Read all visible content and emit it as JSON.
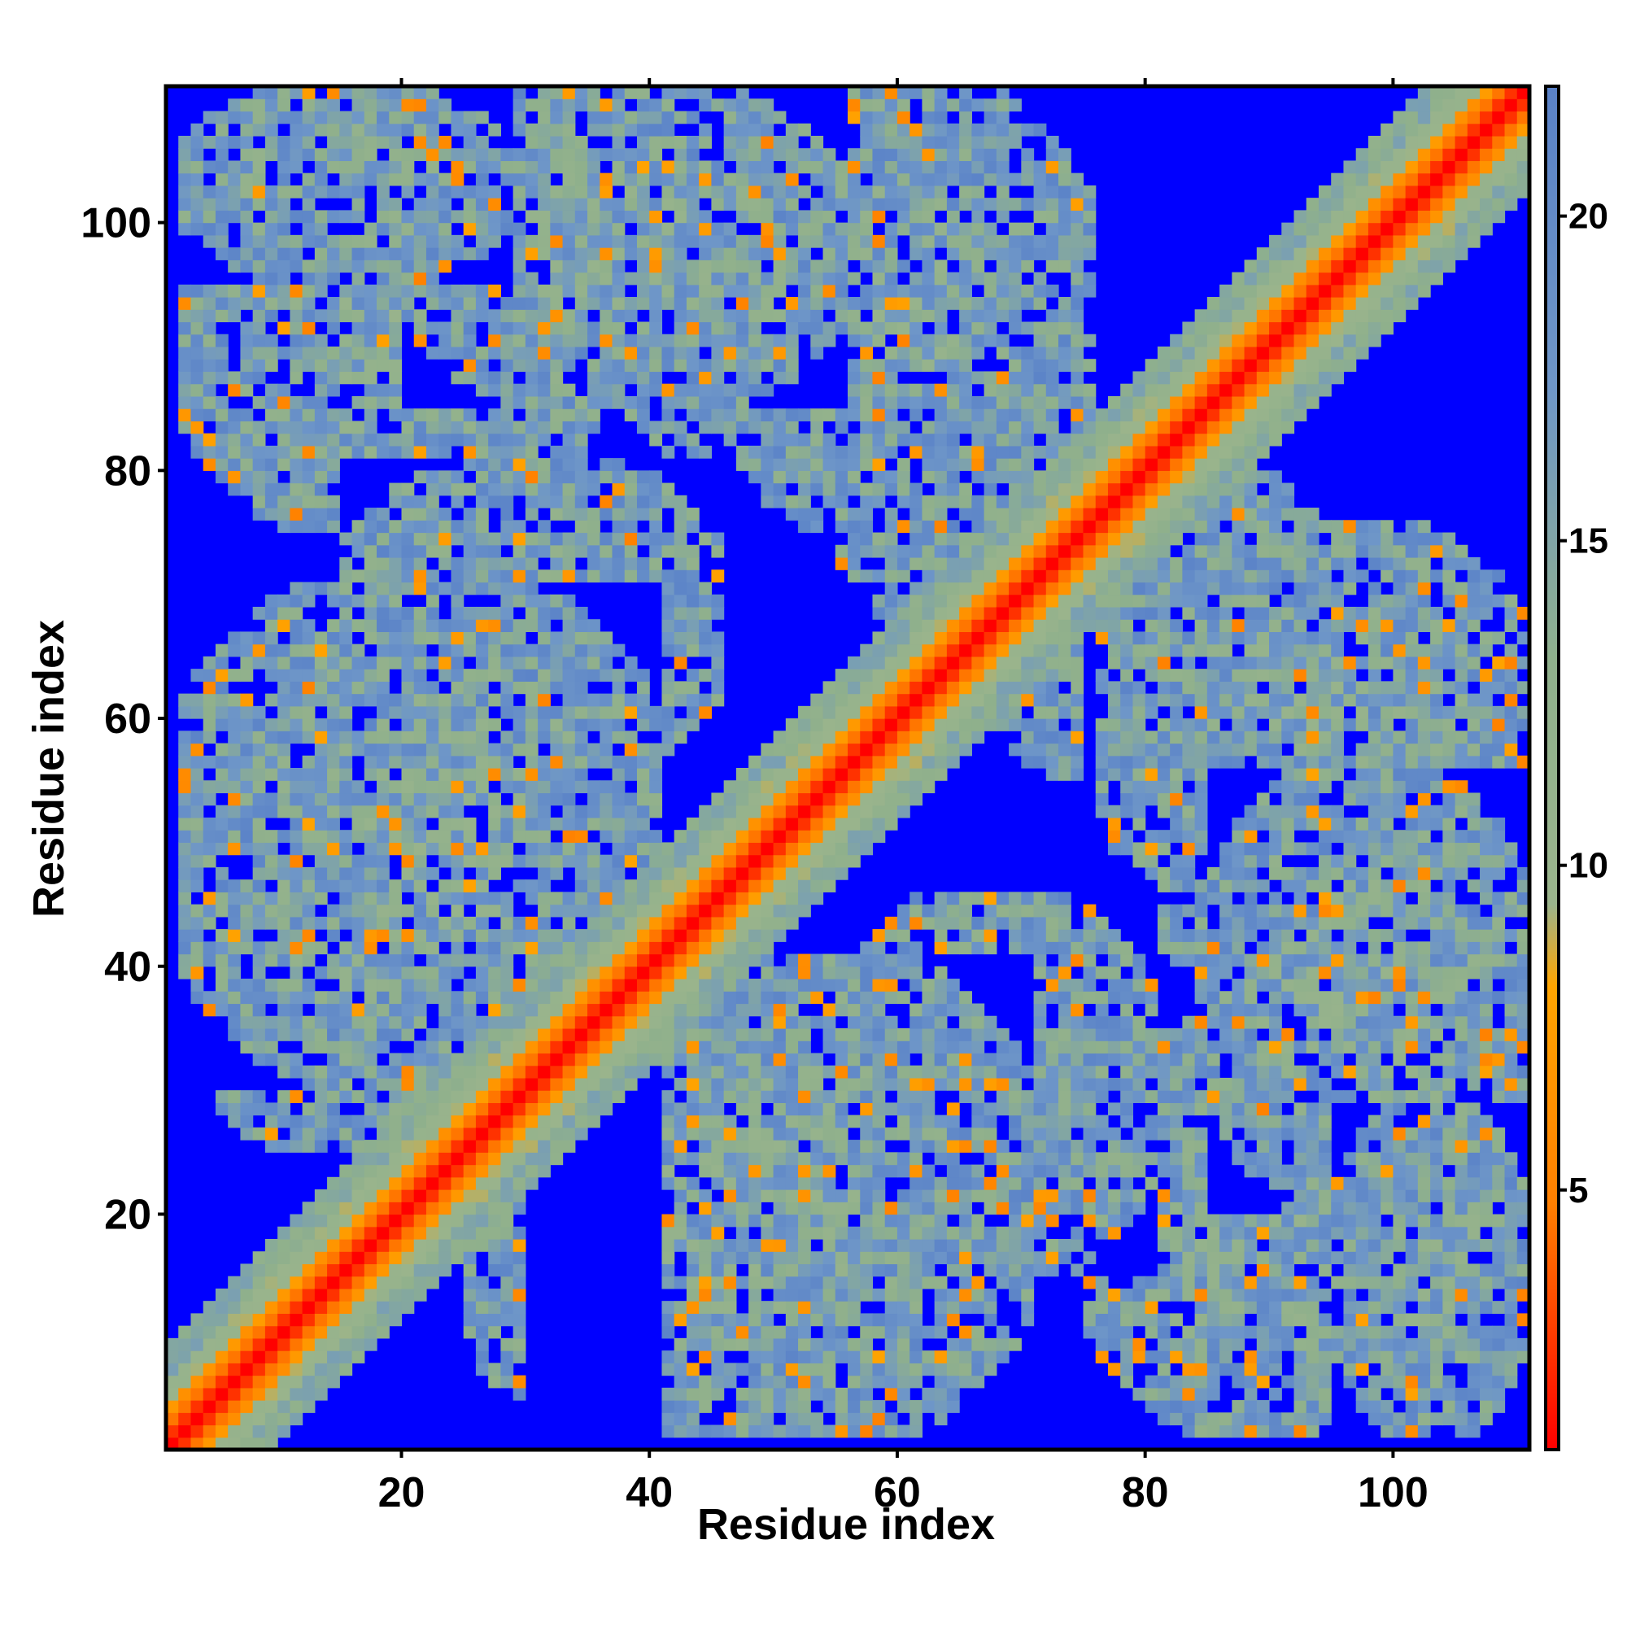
{
  "chart_data": {
    "type": "heatmap",
    "title": "",
    "xlabel": "Residue index",
    "ylabel": "Residue index",
    "xlim": [
      1,
      111
    ],
    "ylim": [
      1,
      111
    ],
    "n_residues": 110,
    "x_ticks": [
      "20",
      "40",
      "60",
      "80",
      "100"
    ],
    "y_ticks": [
      "20",
      "40",
      "60",
      "80",
      "100"
    ],
    "colorbar": {
      "range": [
        1,
        22
      ],
      "ticks": [
        "5",
        "10",
        "15",
        "20"
      ],
      "colors": [
        "#ff0000",
        "#ff7f00",
        "#ffa500",
        "#9ab48c",
        "#8fb08c",
        "#6e96c8",
        "#5a82c8"
      ],
      "stops": [
        0.0,
        0.18,
        0.34,
        0.4,
        0.58,
        0.78,
        1.0
      ],
      "background_color": "#0000ff"
    },
    "structure": {
      "diagonal_band_width": 4,
      "contact_regions": [
        {
          "i": [
            2,
            28
          ],
          "j": [
            95,
            110
          ]
        },
        {
          "i": [
            20,
            55
          ],
          "j": [
            85,
            110
          ]
        },
        {
          "i": [
            45,
            75
          ],
          "j": [
            75,
            110
          ]
        },
        {
          "i": [
            2,
            40
          ],
          "j": [
            30,
            70
          ]
        },
        {
          "i": [
            25,
            60
          ],
          "j": [
            2,
            30
          ]
        },
        {
          "i": [
            55,
            80
          ],
          "j": [
            15,
            45
          ]
        },
        {
          "i": [
            75,
            110
          ],
          "j": [
            2,
            35
          ]
        },
        {
          "i": [
            80,
            110
          ],
          "j": [
            35,
            70
          ]
        },
        {
          "i": [
            65,
            95
          ],
          "j": [
            55,
            80
          ]
        }
      ]
    }
  }
}
